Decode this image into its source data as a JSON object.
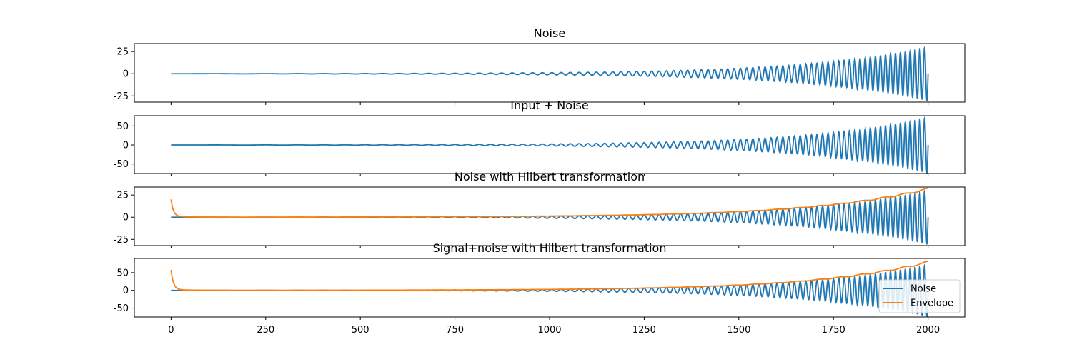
{
  "chart_data": [
    {
      "type": "line",
      "title": "Noise",
      "xlim": [
        -97,
        2097
      ],
      "ylim": [
        -32,
        34
      ],
      "yticks": [
        25,
        0,
        -25
      ],
      "xticks": [
        0,
        250,
        500,
        750,
        1000,
        1250,
        1500,
        1750,
        2000
      ],
      "show_xtick_labels": false,
      "grid": false,
      "series": [
        {
          "color": "#1f77b4",
          "signal": "chirp",
          "amplitude_start": 0.05,
          "amplitude_end": 31,
          "freq_start": 0.0,
          "freq_end": 0.08
        }
      ]
    },
    {
      "type": "line",
      "title": "Input + Noise",
      "xlim": [
        -97,
        2097
      ],
      "ylim": [
        -75,
        77
      ],
      "yticks": [
        50,
        0,
        -50
      ],
      "xticks": [
        0,
        250,
        500,
        750,
        1000,
        1250,
        1500,
        1750,
        2000
      ],
      "show_xtick_labels": false,
      "grid": false,
      "series": [
        {
          "color": "#1f77b4",
          "signal": "chirp",
          "amplitude_start": 0.1,
          "amplitude_end": 75,
          "freq_start": 0.0,
          "freq_end": 0.08
        }
      ]
    },
    {
      "type": "line",
      "title": "Noise with Hilbert transformation",
      "xlim": [
        -97,
        2097
      ],
      "ylim": [
        -32,
        34
      ],
      "yticks": [
        25,
        0,
        -25
      ],
      "xticks": [
        0,
        250,
        500,
        750,
        1000,
        1250,
        1500,
        1750,
        2000
      ],
      "show_xtick_labels": false,
      "grid": false,
      "series": [
        {
          "color": "#1f77b4",
          "signal": "chirp",
          "amplitude_start": 0.05,
          "amplitude_end": 31,
          "freq_start": 0.0,
          "freq_end": 0.08
        },
        {
          "color": "#ff7f0e",
          "signal": "envelope",
          "amplitude_start": 0.05,
          "amplitude_end": 32,
          "start_spike": 19
        }
      ]
    },
    {
      "type": "line",
      "title": "Signal+noise with Hilbert transformation",
      "xlim": [
        -97,
        2097
      ],
      "ylim": [
        -75,
        90
      ],
      "yticks": [
        50,
        0,
        -50
      ],
      "xticks": [
        0,
        250,
        500,
        750,
        1000,
        1250,
        1500,
        1750,
        2000
      ],
      "xtick_labels": [
        "0",
        "250",
        "500",
        "750",
        "1000",
        "1250",
        "1500",
        "1750",
        "2000"
      ],
      "show_xtick_labels": true,
      "grid": false,
      "legend": {
        "position": "bottom-right",
        "entries": [
          "Noise",
          "Envelope"
        ]
      },
      "series": [
        {
          "name": "Noise",
          "color": "#1f77b4",
          "signal": "chirp",
          "amplitude_start": 0.1,
          "amplitude_end": 75,
          "freq_start": 0.0,
          "freq_end": 0.08
        },
        {
          "name": "Envelope",
          "color": "#ff7f0e",
          "signal": "envelope",
          "amplitude_start": 0.1,
          "amplitude_end": 80,
          "start_spike": 55
        }
      ]
    }
  ]
}
